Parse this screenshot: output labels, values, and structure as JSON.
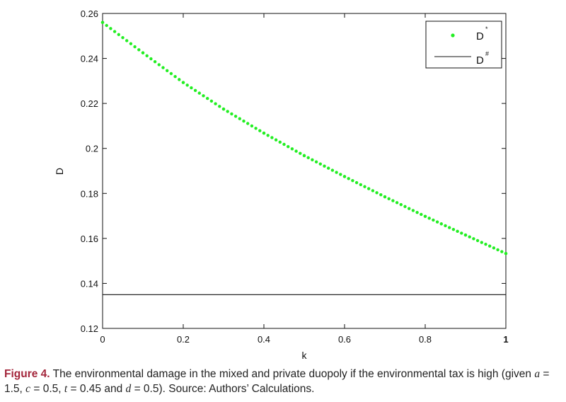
{
  "chart_data": {
    "type": "line",
    "xlabel": "k",
    "ylabel": "D",
    "xlim": [
      0,
      1
    ],
    "ylim": [
      0.12,
      0.26
    ],
    "x_ticks": [
      "0",
      "0.2",
      "0.4",
      "0.6",
      "0.8",
      "1"
    ],
    "y_ticks": [
      "0.12",
      "0.14",
      "0.16",
      "0.18",
      "0.2",
      "0.22",
      "0.24",
      "0.26"
    ],
    "grid": false,
    "legend_position": "top-right",
    "series": [
      {
        "name": "D*",
        "style": "dotted-markers",
        "color": "#22ee22",
        "x": [
          0,
          0.1,
          0.2,
          0.3,
          0.4,
          0.5,
          0.6,
          0.7,
          0.8,
          0.9,
          1.0
        ],
        "y": [
          0.256,
          0.2425,
          0.2293,
          0.2175,
          0.2068,
          0.1968,
          0.1875,
          0.1785,
          0.1698,
          0.1615,
          0.1533
        ]
      },
      {
        "name": "D#",
        "style": "solid-line",
        "color": "#111111",
        "x": [
          0,
          1
        ],
        "y": [
          0.135,
          0.135
        ]
      }
    ]
  },
  "legend": {
    "items": [
      {
        "base": "D",
        "sup": "*"
      },
      {
        "base": "D",
        "sup": "#"
      }
    ]
  },
  "caption": {
    "figure_label": "Figure 4.",
    "text_part1": " The environmental damage in the mixed and private duopoly if the environmental tax is high (given ",
    "a_sym": "a",
    "a_val": " = 1.5,  ",
    "c_sym": "c",
    "c_val": " = 0.5,  ",
    "t_sym": "t",
    "t_val": " = 0.45 and ",
    "d_sym": "d",
    "d_val": " = 0.5). Source: Authors’ Calculations."
  }
}
